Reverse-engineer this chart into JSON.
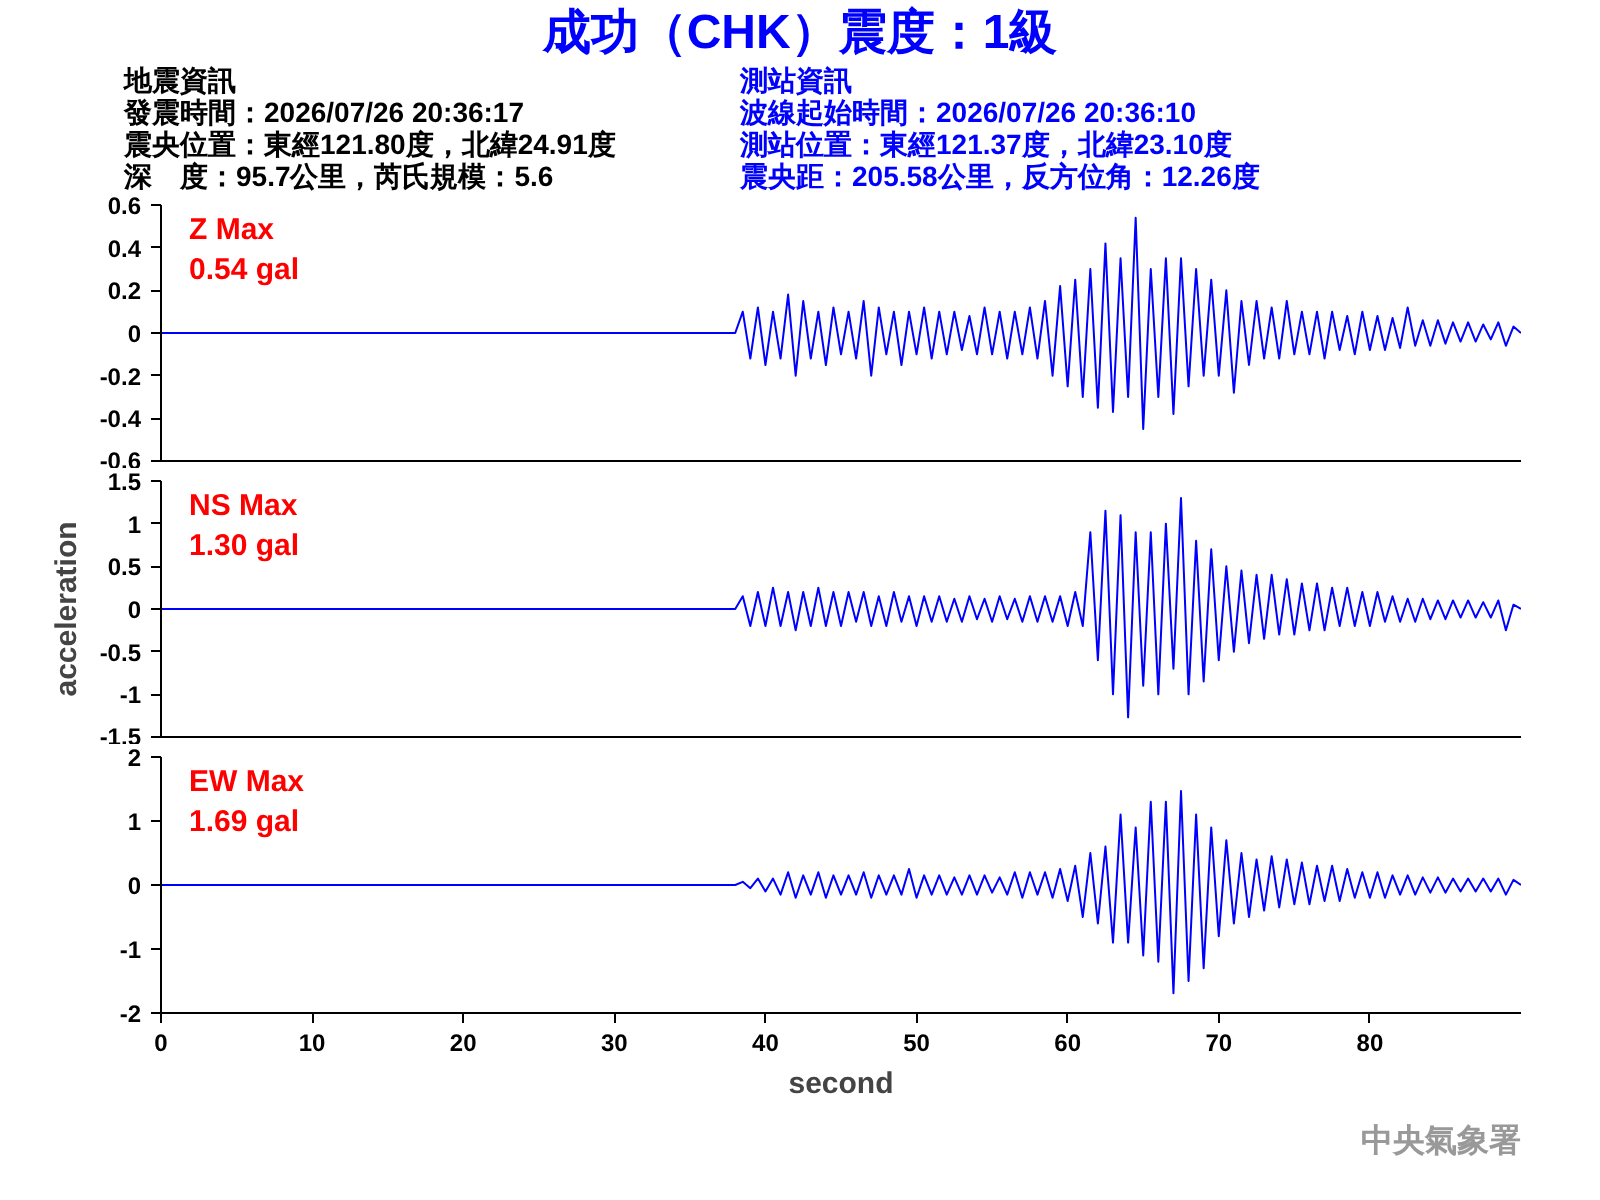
{
  "chart_data": [
    {
      "type": "other",
      "title": "成功（CHK）震度：1級",
      "annotations": [
        "地震資訊",
        "發震時間：2026/07/26 20:36:17",
        "震央位置：東經121.80度，北緯24.91度",
        "深　度：95.7公里，芮氏規模：5.6",
        "測站資訊",
        "波線起始時間：2026/07/26 20:36:10",
        "測站位置：東經121.37度，北緯23.10度",
        "震央距：205.58公里，反方位角：12.26度"
      ]
    },
    {
      "type": "line",
      "x": [
        0,
        10,
        20,
        30,
        38,
        38.5,
        39,
        39.5,
        40,
        40.5,
        41,
        41.5,
        42,
        42.5,
        43,
        43.5,
        44,
        44.5,
        45,
        45.5,
        46,
        46.5,
        47,
        47.5,
        48,
        48.5,
        49,
        49.5,
        50,
        50.5,
        51,
        51.5,
        52,
        52.5,
        53,
        53.5,
        54,
        54.5,
        55,
        55.5,
        56,
        56.5,
        57,
        57.5,
        58,
        58.5,
        59,
        59.5,
        60,
        60.5,
        61,
        61.5,
        62,
        62.5,
        63,
        63.5,
        64,
        64.5,
        65,
        65.5,
        66,
        66.5,
        67,
        67.5,
        68,
        68.5,
        69,
        69.5,
        70,
        70.5,
        71,
        71.5,
        72,
        72.5,
        73,
        73.5,
        74,
        74.5,
        75,
        75.5,
        76,
        76.5,
        77,
        77.5,
        78,
        78.5,
        79,
        79.5,
        80,
        80.5,
        81,
        81.5,
        82,
        82.5,
        83,
        83.5,
        84,
        84.5,
        85,
        85.5,
        86,
        86.5,
        87,
        87.5,
        88,
        88.5,
        89,
        89.5,
        90
      ],
      "series": [
        {
          "color": "#0000ff",
          "values": [
            0,
            0,
            0,
            0,
            0,
            0.1,
            -0.12,
            0.12,
            -0.15,
            0.1,
            -0.12,
            0.18,
            -0.2,
            0.15,
            -0.12,
            0.1,
            -0.15,
            0.12,
            -0.1,
            0.1,
            -0.12,
            0.15,
            -0.2,
            0.12,
            -0.1,
            0.1,
            -0.15,
            0.1,
            -0.1,
            0.12,
            -0.12,
            0.1,
            -0.1,
            0.1,
            -0.08,
            0.08,
            -0.1,
            0.12,
            -0.1,
            0.1,
            -0.12,
            0.1,
            -0.1,
            0.12,
            -0.12,
            0.15,
            -0.2,
            0.22,
            -0.25,
            0.25,
            -0.3,
            0.3,
            -0.35,
            0.42,
            -0.37,
            0.35,
            -0.3,
            0.54,
            -0.45,
            0.3,
            -0.3,
            0.35,
            -0.38,
            0.35,
            -0.25,
            0.3,
            -0.2,
            0.25,
            -0.2,
            0.2,
            -0.28,
            0.15,
            -0.15,
            0.15,
            -0.12,
            0.12,
            -0.12,
            0.15,
            -0.1,
            0.1,
            -0.1,
            0.1,
            -0.12,
            0.1,
            -0.08,
            0.08,
            -0.1,
            0.1,
            -0.08,
            0.08,
            -0.08,
            0.07,
            -0.07,
            0.12,
            -0.06,
            0.06,
            -0.06,
            0.06,
            -0.05,
            0.05,
            -0.04,
            0.05,
            -0.04,
            0.04,
            -0.03,
            0.05,
            -0.06,
            0.03,
            0
          ]
        }
      ],
      "xlim": [
        0,
        90
      ],
      "ylim": [
        -0.6,
        0.6
      ],
      "yticks": [
        -0.6,
        -0.4,
        -0.2,
        0,
        0.2,
        0.4,
        0.6
      ],
      "tick_labels": "y",
      "annotations": [
        "Z Max",
        "0.54 gal"
      ]
    },
    {
      "type": "line",
      "x": [
        0,
        10,
        20,
        30,
        38,
        38.5,
        39,
        39.5,
        40,
        40.5,
        41,
        41.5,
        42,
        42.5,
        43,
        43.5,
        44,
        44.5,
        45,
        45.5,
        46,
        46.5,
        47,
        47.5,
        48,
        48.5,
        49,
        49.5,
        50,
        50.5,
        51,
        51.5,
        52,
        52.5,
        53,
        53.5,
        54,
        54.5,
        55,
        55.5,
        56,
        56.5,
        57,
        57.5,
        58,
        58.5,
        59,
        59.5,
        60,
        60.5,
        61,
        61.5,
        62,
        62.5,
        63,
        63.5,
        64,
        64.5,
        65,
        65.5,
        66,
        66.5,
        67,
        67.5,
        68,
        68.5,
        69,
        69.5,
        70,
        70.5,
        71,
        71.5,
        72,
        72.5,
        73,
        73.5,
        74,
        74.5,
        75,
        75.5,
        76,
        76.5,
        77,
        77.5,
        78,
        78.5,
        79,
        79.5,
        80,
        80.5,
        81,
        81.5,
        82,
        82.5,
        83,
        83.5,
        84,
        84.5,
        85,
        85.5,
        86,
        86.5,
        87,
        87.5,
        88,
        88.5,
        89,
        89.5,
        90
      ],
      "series": [
        {
          "color": "#0000ff",
          "values": [
            0,
            0,
            0,
            0,
            0,
            0.15,
            -0.2,
            0.2,
            -0.2,
            0.25,
            -0.2,
            0.2,
            -0.25,
            0.2,
            -0.2,
            0.25,
            -0.2,
            0.2,
            -0.2,
            0.2,
            -0.15,
            0.2,
            -0.2,
            0.15,
            -0.2,
            0.2,
            -0.15,
            0.15,
            -0.2,
            0.15,
            -0.15,
            0.15,
            -0.15,
            0.12,
            -0.15,
            0.15,
            -0.12,
            0.12,
            -0.15,
            0.15,
            -0.12,
            0.12,
            -0.15,
            0.15,
            -0.15,
            0.15,
            -0.15,
            0.15,
            -0.2,
            0.2,
            -0.2,
            0.9,
            -0.6,
            1.15,
            -1.0,
            1.1,
            -1.27,
            0.9,
            -0.9,
            0.9,
            -1.0,
            1.0,
            -0.7,
            1.3,
            -1.0,
            0.8,
            -0.85,
            0.7,
            -0.6,
            0.5,
            -0.5,
            0.45,
            -0.4,
            0.4,
            -0.35,
            0.4,
            -0.3,
            0.35,
            -0.3,
            0.3,
            -0.25,
            0.3,
            -0.25,
            0.25,
            -0.2,
            0.25,
            -0.2,
            0.2,
            -0.2,
            0.2,
            -0.15,
            0.15,
            -0.15,
            0.12,
            -0.15,
            0.12,
            -0.12,
            0.1,
            -0.12,
            0.1,
            -0.1,
            0.1,
            -0.1,
            0.08,
            -0.1,
            0.1,
            -0.25,
            0.05,
            0
          ]
        }
      ],
      "xlim": [
        0,
        90
      ],
      "ylim": [
        -1.5,
        1.5
      ],
      "yticks": [
        -1.5,
        -1,
        -0.5,
        0,
        0.5,
        1,
        1.5
      ],
      "tick_labels": "y",
      "ylabel": "acceleration",
      "annotations": [
        "NS Max",
        "1.30 gal"
      ]
    },
    {
      "type": "line",
      "x": [
        0,
        10,
        20,
        30,
        38,
        38.5,
        39,
        39.5,
        40,
        40.5,
        41,
        41.5,
        42,
        42.5,
        43,
        43.5,
        44,
        44.5,
        45,
        45.5,
        46,
        46.5,
        47,
        47.5,
        48,
        48.5,
        49,
        49.5,
        50,
        50.5,
        51,
        51.5,
        52,
        52.5,
        53,
        53.5,
        54,
        54.5,
        55,
        55.5,
        56,
        56.5,
        57,
        57.5,
        58,
        58.5,
        59,
        59.5,
        60,
        60.5,
        61,
        61.5,
        62,
        62.5,
        63,
        63.5,
        64,
        64.5,
        65,
        65.5,
        66,
        66.5,
        67,
        67.5,
        68,
        68.5,
        69,
        69.5,
        70,
        70.5,
        71,
        71.5,
        72,
        72.5,
        73,
        73.5,
        74,
        74.5,
        75,
        75.5,
        76,
        76.5,
        77,
        77.5,
        78,
        78.5,
        79,
        79.5,
        80,
        80.5,
        81,
        81.5,
        82,
        82.5,
        83,
        83.5,
        84,
        84.5,
        85,
        85.5,
        86,
        86.5,
        87,
        87.5,
        88,
        88.5,
        89,
        89.5,
        90
      ],
      "series": [
        {
          "color": "#0000ff",
          "values": [
            0,
            0,
            0,
            0,
            0,
            0.05,
            -0.05,
            0.1,
            -0.1,
            0.1,
            -0.15,
            0.2,
            -0.2,
            0.15,
            -0.15,
            0.2,
            -0.2,
            0.15,
            -0.15,
            0.15,
            -0.15,
            0.2,
            -0.2,
            0.15,
            -0.15,
            0.15,
            -0.15,
            0.25,
            -0.2,
            0.15,
            -0.15,
            0.15,
            -0.15,
            0.12,
            -0.15,
            0.15,
            -0.15,
            0.15,
            -0.12,
            0.12,
            -0.15,
            0.2,
            -0.2,
            0.2,
            -0.15,
            0.2,
            -0.2,
            0.25,
            -0.25,
            0.3,
            -0.5,
            0.5,
            -0.6,
            0.6,
            -0.9,
            1.1,
            -0.9,
            0.9,
            -1.1,
            1.3,
            -1.2,
            1.3,
            -1.69,
            1.47,
            -1.5,
            1.1,
            -1.3,
            0.9,
            -0.8,
            0.7,
            -0.6,
            0.5,
            -0.5,
            0.4,
            -0.4,
            0.45,
            -0.35,
            0.4,
            -0.3,
            0.35,
            -0.3,
            0.3,
            -0.25,
            0.3,
            -0.25,
            0.25,
            -0.2,
            0.2,
            -0.2,
            0.2,
            -0.2,
            0.15,
            -0.15,
            0.15,
            -0.15,
            0.12,
            -0.12,
            0.12,
            -0.12,
            0.1,
            -0.1,
            0.1,
            -0.1,
            0.1,
            -0.1,
            0.1,
            -0.15,
            0.08,
            0
          ]
        }
      ],
      "xlim": [
        0,
        90
      ],
      "ylim": [
        -2,
        2
      ],
      "xticks": [
        0,
        10,
        20,
        30,
        40,
        50,
        60,
        70,
        80
      ],
      "yticks": [
        -2,
        -1,
        0,
        1,
        2
      ],
      "xlabel": "second",
      "annotations": [
        "EW Max",
        "1.69 gal",
        "中央氣象署"
      ]
    }
  ]
}
